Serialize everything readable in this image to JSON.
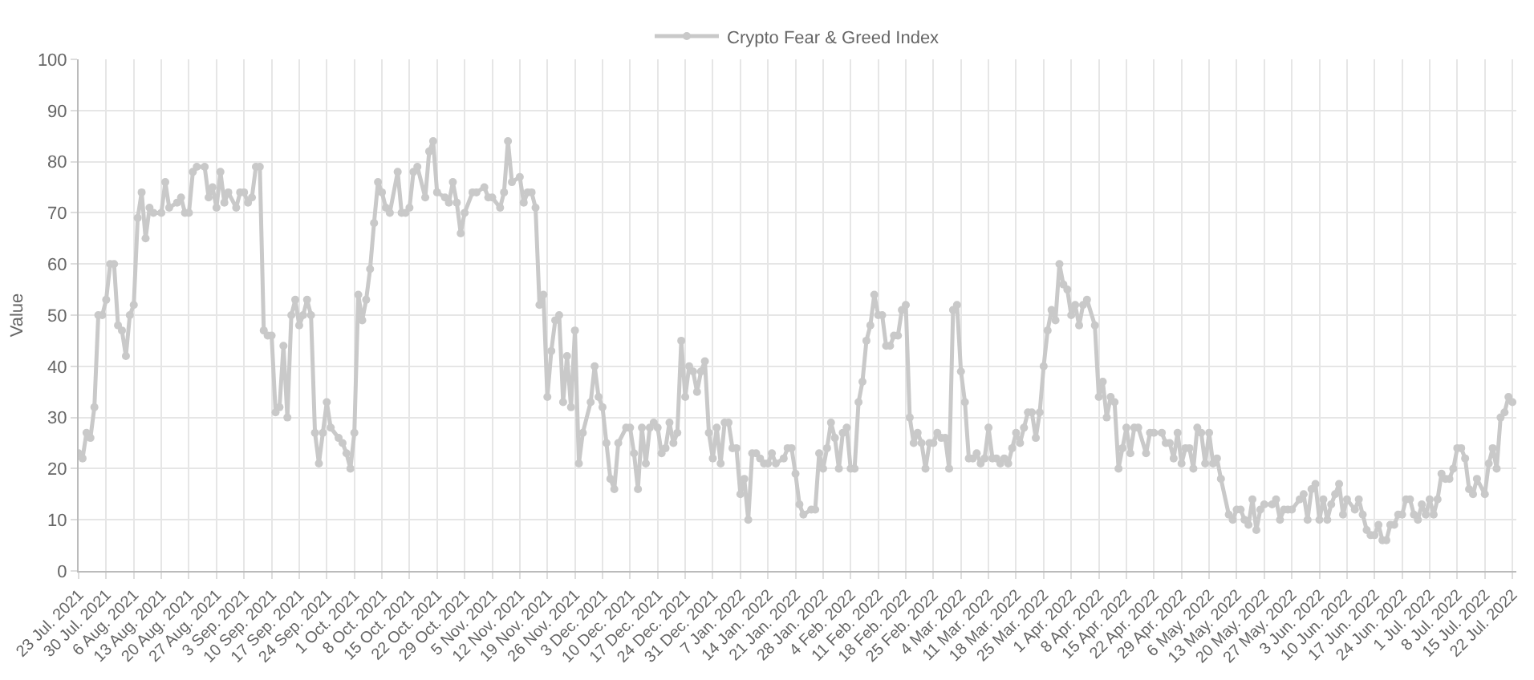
{
  "chart_data": {
    "type": "line",
    "ylabel": "Value",
    "legend": "top",
    "grid": true,
    "marker": "circle",
    "line_style": "solid",
    "ylim": [
      0,
      100
    ],
    "yticks": [
      0,
      10,
      20,
      30,
      40,
      50,
      60,
      70,
      80,
      90,
      100
    ],
    "xlim": [
      "2021-07-23",
      "2022-07-23"
    ],
    "xticks": [
      {
        "value": "2021-07-23",
        "label": "23 Jul. 2021"
      },
      {
        "value": "2021-07-30",
        "label": "30 Jul. 2021"
      },
      {
        "value": "2021-08-06",
        "label": "6 Aug. 2021"
      },
      {
        "value": "2021-08-13",
        "label": "13 Aug. 2021"
      },
      {
        "value": "2021-08-20",
        "label": "20 Aug. 2021"
      },
      {
        "value": "2021-08-27",
        "label": "27 Aug. 2021"
      },
      {
        "value": "2021-09-03",
        "label": "3 Sep. 2021"
      },
      {
        "value": "2021-09-10",
        "label": "10 Sep. 2021"
      },
      {
        "value": "2021-09-17",
        "label": "17 Sep. 2021"
      },
      {
        "value": "2021-09-24",
        "label": "24 Sep. 2021"
      },
      {
        "value": "2021-10-01",
        "label": "1 Oct. 2021"
      },
      {
        "value": "2021-10-08",
        "label": "8 Oct. 2021"
      },
      {
        "value": "2021-10-15",
        "label": "15 Oct. 2021"
      },
      {
        "value": "2021-10-22",
        "label": "22 Oct. 2021"
      },
      {
        "value": "2021-10-29",
        "label": "29 Oct. 2021"
      },
      {
        "value": "2021-11-05",
        "label": "5 Nov. 2021"
      },
      {
        "value": "2021-11-12",
        "label": "12 Nov. 2021"
      },
      {
        "value": "2021-11-19",
        "label": "19 Nov. 2021"
      },
      {
        "value": "2021-11-26",
        "label": "26 Nov. 2021"
      },
      {
        "value": "2021-12-03",
        "label": "3 Dec. 2021"
      },
      {
        "value": "2021-12-10",
        "label": "10 Dec. 2021"
      },
      {
        "value": "2021-12-17",
        "label": "17 Dec. 2021"
      },
      {
        "value": "2021-12-24",
        "label": "24 Dec. 2021"
      },
      {
        "value": "2021-12-31",
        "label": "31 Dec. 2021"
      },
      {
        "value": "2022-01-07",
        "label": "7 Jan. 2022"
      },
      {
        "value": "2022-01-14",
        "label": "14 Jan. 2022"
      },
      {
        "value": "2022-01-21",
        "label": "21 Jan. 2022"
      },
      {
        "value": "2022-01-28",
        "label": "28 Jan. 2022"
      },
      {
        "value": "2022-02-04",
        "label": "4 Feb. 2022"
      },
      {
        "value": "2022-02-11",
        "label": "11 Feb. 2022"
      },
      {
        "value": "2022-02-18",
        "label": "18 Feb. 2022"
      },
      {
        "value": "2022-02-25",
        "label": "25 Feb. 2022"
      },
      {
        "value": "2022-03-04",
        "label": "4 Mar. 2022"
      },
      {
        "value": "2022-03-11",
        "label": "11 Mar. 2022"
      },
      {
        "value": "2022-03-18",
        "label": "18 Mar. 2022"
      },
      {
        "value": "2022-03-25",
        "label": "25 Mar. 2022"
      },
      {
        "value": "2022-04-01",
        "label": "1 Apr. 2022"
      },
      {
        "value": "2022-04-08",
        "label": "8 Apr. 2022"
      },
      {
        "value": "2022-04-15",
        "label": "15 Apr. 2022"
      },
      {
        "value": "2022-04-22",
        "label": "22 Apr. 2022"
      },
      {
        "value": "2022-04-29",
        "label": "29 Apr. 2022"
      },
      {
        "value": "2022-05-06",
        "label": "6 May. 2022"
      },
      {
        "value": "2022-05-13",
        "label": "13 May. 2022"
      },
      {
        "value": "2022-05-20",
        "label": "20 May. 2022"
      },
      {
        "value": "2022-05-27",
        "label": "27 May. 2022"
      },
      {
        "value": "2022-06-03",
        "label": "3 Jun. 2022"
      },
      {
        "value": "2022-06-10",
        "label": "10 Jun. 2022"
      },
      {
        "value": "2022-06-17",
        "label": "17 Jun. 2022"
      },
      {
        "value": "2022-06-24",
        "label": "24 Jun. 2022"
      },
      {
        "value": "2022-07-01",
        "label": "1 Jul. 2022"
      },
      {
        "value": "2022-07-08",
        "label": "8 Jul. 2022"
      },
      {
        "value": "2022-07-15",
        "label": "15 Jul. 2022"
      },
      {
        "value": "2022-07-22",
        "label": "22 Jul. 2022"
      }
    ],
    "series": [
      {
        "name": "Crypto Fear & Greed Index",
        "color": "#c9c9c9",
        "x": [
          "2021-07-23",
          "2021-07-24",
          "2021-07-25",
          "2021-07-26",
          "2021-07-27",
          "2021-07-28",
          "2021-07-29",
          "2021-07-30",
          "2021-07-31",
          "2021-08-01",
          "2021-08-02",
          "2021-08-03",
          "2021-08-04",
          "2021-08-05",
          "2021-08-06",
          "2021-08-07",
          "2021-08-08",
          "2021-08-09",
          "2021-08-10",
          "2021-08-11",
          "2021-08-13",
          "2021-08-14",
          "2021-08-15",
          "2021-08-17",
          "2021-08-18",
          "2021-08-19",
          "2021-08-20",
          "2021-08-21",
          "2021-08-22",
          "2021-08-24",
          "2021-08-25",
          "2021-08-26",
          "2021-08-27",
          "2021-08-28",
          "2021-08-29",
          "2021-08-30",
          "2021-09-01",
          "2021-09-02",
          "2021-09-03",
          "2021-09-04",
          "2021-09-05",
          "2021-09-06",
          "2021-09-07",
          "2021-09-08",
          "2021-09-09",
          "2021-09-10",
          "2021-09-11",
          "2021-09-12",
          "2021-09-13",
          "2021-09-14",
          "2021-09-15",
          "2021-09-16",
          "2021-09-17",
          "2021-09-18",
          "2021-09-19",
          "2021-09-20",
          "2021-09-21",
          "2021-09-22",
          "2021-09-23",
          "2021-09-24",
          "2021-09-25",
          "2021-09-27",
          "2021-09-28",
          "2021-09-29",
          "2021-09-30",
          "2021-10-01",
          "2021-10-02",
          "2021-10-03",
          "2021-10-04",
          "2021-10-05",
          "2021-10-06",
          "2021-10-07",
          "2021-10-08",
          "2021-10-09",
          "2021-10-10",
          "2021-10-12",
          "2021-10-13",
          "2021-10-14",
          "2021-10-15",
          "2021-10-16",
          "2021-10-17",
          "2021-10-19",
          "2021-10-20",
          "2021-10-21",
          "2021-10-22",
          "2021-10-24",
          "2021-10-25",
          "2021-10-26",
          "2021-10-27",
          "2021-10-28",
          "2021-10-29",
          "2021-10-31",
          "2021-11-01",
          "2021-11-03",
          "2021-11-04",
          "2021-11-05",
          "2021-11-07",
          "2021-11-08",
          "2021-11-09",
          "2021-11-10",
          "2021-11-12",
          "2021-11-13",
          "2021-11-14",
          "2021-11-15",
          "2021-11-16",
          "2021-11-17",
          "2021-11-18",
          "2021-11-19",
          "2021-11-20",
          "2021-11-21",
          "2021-11-22",
          "2021-11-23",
          "2021-11-24",
          "2021-11-25",
          "2021-11-26",
          "2021-11-27",
          "2021-11-28",
          "2021-11-30",
          "2021-12-01",
          "2021-12-02",
          "2021-12-03",
          "2021-12-04",
          "2021-12-05",
          "2021-12-06",
          "2021-12-07",
          "2021-12-09",
          "2021-12-10",
          "2021-12-11",
          "2021-12-12",
          "2021-12-13",
          "2021-12-14",
          "2021-12-15",
          "2021-12-16",
          "2021-12-17",
          "2021-12-18",
          "2021-12-19",
          "2021-12-20",
          "2021-12-21",
          "2021-12-22",
          "2021-12-23",
          "2021-12-24",
          "2021-12-25",
          "2021-12-26",
          "2021-12-27",
          "2021-12-28",
          "2021-12-29",
          "2021-12-30",
          "2021-12-31",
          "2022-01-01",
          "2022-01-02",
          "2022-01-03",
          "2022-01-04",
          "2022-01-05",
          "2022-01-06",
          "2022-01-07",
          "2022-01-08",
          "2022-01-09",
          "2022-01-10",
          "2022-01-11",
          "2022-01-12",
          "2022-01-13",
          "2022-01-14",
          "2022-01-15",
          "2022-01-16",
          "2022-01-18",
          "2022-01-19",
          "2022-01-20",
          "2022-01-21",
          "2022-01-22",
          "2022-01-23",
          "2022-01-25",
          "2022-01-26",
          "2022-01-27",
          "2022-01-28",
          "2022-01-29",
          "2022-01-30",
          "2022-01-31",
          "2022-02-01",
          "2022-02-02",
          "2022-02-03",
          "2022-02-04",
          "2022-02-05",
          "2022-02-06",
          "2022-02-07",
          "2022-02-08",
          "2022-02-09",
          "2022-02-10",
          "2022-02-11",
          "2022-02-12",
          "2022-02-13",
          "2022-02-14",
          "2022-02-15",
          "2022-02-16",
          "2022-02-17",
          "2022-02-18",
          "2022-02-19",
          "2022-02-20",
          "2022-02-21",
          "2022-02-22",
          "2022-02-23",
          "2022-02-24",
          "2022-02-25",
          "2022-02-26",
          "2022-02-27",
          "2022-02-28",
          "2022-03-01",
          "2022-03-02",
          "2022-03-03",
          "2022-03-04",
          "2022-03-05",
          "2022-03-06",
          "2022-03-07",
          "2022-03-08",
          "2022-03-09",
          "2022-03-10",
          "2022-03-11",
          "2022-03-12",
          "2022-03-13",
          "2022-03-14",
          "2022-03-15",
          "2022-03-16",
          "2022-03-17",
          "2022-03-18",
          "2022-03-19",
          "2022-03-20",
          "2022-03-21",
          "2022-03-22",
          "2022-03-23",
          "2022-03-24",
          "2022-03-25",
          "2022-03-26",
          "2022-03-27",
          "2022-03-28",
          "2022-03-29",
          "2022-03-30",
          "2022-03-31",
          "2022-04-01",
          "2022-04-02",
          "2022-04-03",
          "2022-04-04",
          "2022-04-05",
          "2022-04-07",
          "2022-04-08",
          "2022-04-09",
          "2022-04-10",
          "2022-04-11",
          "2022-04-12",
          "2022-04-13",
          "2022-04-14",
          "2022-04-15",
          "2022-04-16",
          "2022-04-17",
          "2022-04-18",
          "2022-04-20",
          "2022-04-21",
          "2022-04-22",
          "2022-04-24",
          "2022-04-25",
          "2022-04-26",
          "2022-04-27",
          "2022-04-28",
          "2022-04-29",
          "2022-04-30",
          "2022-05-01",
          "2022-05-02",
          "2022-05-03",
          "2022-05-04",
          "2022-05-05",
          "2022-05-06",
          "2022-05-07",
          "2022-05-08",
          "2022-05-09",
          "2022-05-11",
          "2022-05-12",
          "2022-05-13",
          "2022-05-14",
          "2022-05-15",
          "2022-05-16",
          "2022-05-17",
          "2022-05-18",
          "2022-05-19",
          "2022-05-20",
          "2022-05-22",
          "2022-05-23",
          "2022-05-24",
          "2022-05-25",
          "2022-05-26",
          "2022-05-27",
          "2022-05-29",
          "2022-05-30",
          "2022-05-31",
          "2022-06-01",
          "2022-06-02",
          "2022-06-03",
          "2022-06-04",
          "2022-06-05",
          "2022-06-06",
          "2022-06-07",
          "2022-06-08",
          "2022-06-09",
          "2022-06-10",
          "2022-06-12",
          "2022-06-13",
          "2022-06-14",
          "2022-06-15",
          "2022-06-16",
          "2022-06-17",
          "2022-06-18",
          "2022-06-19",
          "2022-06-20",
          "2022-06-21",
          "2022-06-22",
          "2022-06-23",
          "2022-06-24",
          "2022-06-25",
          "2022-06-26",
          "2022-06-27",
          "2022-06-28",
          "2022-06-29",
          "2022-06-30",
          "2022-07-01",
          "2022-07-02",
          "2022-07-03",
          "2022-07-04",
          "2022-07-05",
          "2022-07-06",
          "2022-07-07",
          "2022-07-08",
          "2022-07-09",
          "2022-07-10",
          "2022-07-11",
          "2022-07-12",
          "2022-07-13",
          "2022-07-15",
          "2022-07-16",
          "2022-07-17",
          "2022-07-18",
          "2022-07-19",
          "2022-07-20",
          "2022-07-21",
          "2022-07-22"
        ],
        "values": [
          23,
          22,
          27,
          26,
          32,
          50,
          50,
          53,
          60,
          60,
          48,
          47,
          42,
          50,
          52,
          69,
          74,
          65,
          71,
          70,
          70,
          76,
          71,
          72,
          73,
          70,
          70,
          78,
          79,
          79,
          73,
          75,
          71,
          78,
          72,
          74,
          71,
          74,
          74,
          72,
          73,
          79,
          79,
          47,
          46,
          46,
          31,
          32,
          44,
          30,
          50,
          53,
          48,
          50,
          53,
          50,
          27,
          21,
          27,
          33,
          28,
          26,
          25,
          23,
          20,
          27,
          54,
          49,
          53,
          59,
          68,
          76,
          74,
          71,
          70,
          78,
          70,
          70,
          71,
          78,
          79,
          73,
          82,
          84,
          74,
          73,
          72,
          76,
          72,
          66,
          70,
          74,
          74,
          75,
          73,
          73,
          71,
          74,
          84,
          76,
          77,
          72,
          74,
          74,
          71,
          52,
          54,
          34,
          43,
          49,
          50,
          33,
          42,
          32,
          47,
          21,
          27,
          33,
          40,
          34,
          32,
          25,
          18,
          16,
          25,
          28,
          28,
          23,
          16,
          28,
          21,
          28,
          29,
          28,
          23,
          24,
          29,
          25,
          27,
          45,
          34,
          40,
          39,
          35,
          39,
          41,
          27,
          22,
          28,
          21,
          29,
          29,
          24,
          24,
          15,
          18,
          10,
          23,
          23,
          22,
          21,
          21,
          23,
          21,
          22,
          24,
          24,
          19,
          13,
          11,
          12,
          12,
          23,
          20,
          24,
          29,
          26,
          20,
          27,
          28,
          20,
          20,
          33,
          37,
          45,
          48,
          54,
          50,
          50,
          44,
          44,
          46,
          46,
          51,
          52,
          30,
          25,
          27,
          25,
          20,
          25,
          25,
          27,
          26,
          26,
          20,
          51,
          52,
          39,
          33,
          22,
          22,
          23,
          21,
          22,
          28,
          22,
          22,
          21,
          22,
          21,
          24,
          27,
          25,
          28,
          31,
          31,
          26,
          31,
          40,
          47,
          51,
          49,
          60,
          56,
          55,
          50,
          52,
          48,
          52,
          53,
          48,
          34,
          37,
          30,
          34,
          33,
          20,
          24,
          28,
          23,
          28,
          28,
          23,
          27,
          27,
          27,
          25,
          25,
          22,
          27,
          21,
          24,
          24,
          20,
          28,
          27,
          21,
          27,
          21,
          22,
          18,
          11,
          10,
          12,
          12,
          10,
          9,
          14,
          8,
          12,
          13,
          13,
          14,
          10,
          12,
          12,
          12,
          14,
          15,
          10,
          16,
          17,
          10,
          14,
          10,
          13,
          15,
          17,
          11,
          14,
          12,
          14,
          11,
          8,
          7,
          7,
          9,
          6,
          6,
          9,
          9,
          11,
          11,
          14,
          14,
          11,
          10,
          13,
          11,
          14,
          11,
          14,
          19,
          18,
          18,
          20,
          24,
          24,
          22,
          16,
          15,
          18,
          15,
          21,
          24,
          20,
          30,
          31,
          34,
          33
        ]
      }
    ]
  }
}
